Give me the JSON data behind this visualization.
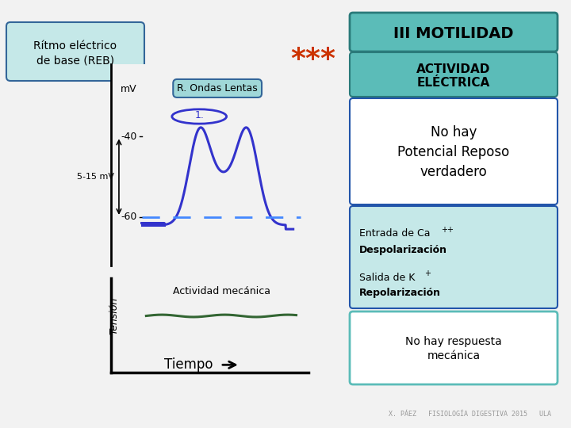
{
  "bg_color": "#f2f2f2",
  "title_box_text": "III MOTILIDAD",
  "title_box_bg": "#5bbcb8",
  "title_box_border": "#2a7a7a",
  "left_box_text": "Rítmo eléctrico\nde base (REB)",
  "left_box_bg": "#c5e8e8",
  "left_box_border": "#336699",
  "stars_color": "#cc3300",
  "stars_text": "***",
  "actividad_box_text": "ACTIVIDAD\nELÉCTRICA",
  "actividad_box_bg": "#5bbcb8",
  "actividad_box_border": "#2a7a7a",
  "no_hay_text": "No hay\nPotencial Reposo\nverdadero",
  "no_hay_box_border": "#2255aa",
  "no_hay_box_bg": "#ffffff",
  "ion_box_bg": "#c5e8e8",
  "ion_box_border": "#2255aa",
  "r_ondas_text": "R. Ondas Lentas",
  "r_ondas_bg": "#a0d8d8",
  "r_ondas_border": "#336699",
  "circle_color": "#3333cc",
  "wave_color": "#3333cc",
  "dashed_color": "#4488ff",
  "green_line_color": "#336633",
  "actividad_mecanica_text": "Actividad mecánica",
  "tiempo_text": "Tiempo",
  "no_hay_respuesta_text": "No hay respuesta\nmecánica",
  "no_hay_respuesta_box_border": "#5bbcb8",
  "no_hay_respuesta_box_bg": "#ffffff",
  "footer_text": "X. PÁEZ   FISIOLOGÍA DIGESTIVA 2015   ULA",
  "mv_label": "mV",
  "minus40_label": "-40",
  "minus60_label": "-60",
  "amplitude_label": "5-15 mV",
  "tension_label": "Tensión"
}
